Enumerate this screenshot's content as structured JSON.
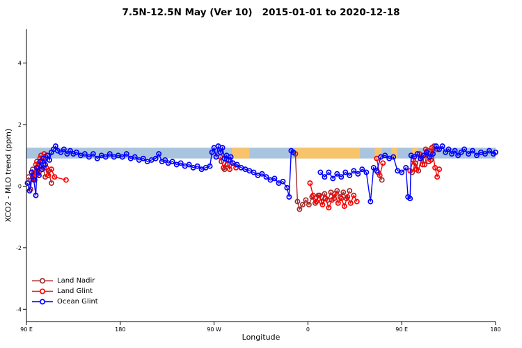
{
  "chart_data": {
    "type": "line",
    "title": "7.5N-12.5N May (Ver 10)   2015-01-01 to 2020-12-18",
    "x_axis": {
      "title": "Longitude",
      "min": 0,
      "max": 450,
      "ticks": [
        {
          "pos": 0,
          "label": "90 E"
        },
        {
          "pos": 90,
          "label": "180"
        },
        {
          "pos": 180,
          "label": "90 W"
        },
        {
          "pos": 270,
          "label": "0"
        },
        {
          "pos": 360,
          "label": "90 E"
        },
        {
          "pos": 450,
          "label": "180"
        }
      ],
      "note": "axis spans 450 degrees of longitude starting at 90E and wrapping eastward to 180"
    },
    "y_axis": {
      "title": "XCO2 - MLO trend (ppm)",
      "min": -4.4,
      "max": 5.1,
      "ticks": [
        {
          "value": -4,
          "label": "-4"
        },
        {
          "value": -2,
          "label": "-2"
        },
        {
          "value": 0,
          "label": "0"
        },
        {
          "value": 2,
          "label": "2"
        },
        {
          "value": 4,
          "label": "4"
        }
      ]
    },
    "bands": {
      "reference": {
        "x_min": 0,
        "x_max": 450,
        "y_min": 0.9,
        "y_max": 1.25,
        "color": "#a9c4de"
      },
      "highlight_color": "#f7c46c",
      "highlight_segments": [
        [
          197,
          214
        ],
        [
          258,
          320
        ],
        [
          334,
          341
        ],
        [
          350,
          356
        ],
        [
          370,
          376
        ]
      ]
    },
    "legend_position": "bottom-left",
    "series": [
      {
        "name": "Land Nadir",
        "color": "#a52a2a",
        "points": [
          [
            2,
            0.3
          ],
          [
            4,
            -0.1
          ],
          [
            6,
            0.55
          ],
          [
            8,
            0.2
          ],
          [
            10,
            0.8
          ],
          [
            12,
            0.45
          ],
          [
            14,
            1.0
          ],
          [
            16,
            0.6
          ],
          [
            18,
            0.3
          ],
          [
            21,
            0.5
          ],
          [
            24,
            0.1
          ],
          [
            187,
            0.8
          ],
          [
            190,
            0.55
          ],
          [
            193,
            0.7
          ],
          [
            258,
            1.05
          ],
          [
            260,
            -0.5
          ],
          [
            262,
            -0.75
          ],
          [
            265,
            -0.6
          ],
          [
            268,
            -0.45
          ],
          [
            271,
            -0.6
          ],
          [
            274,
            -0.35
          ],
          [
            277,
            -0.55
          ],
          [
            280,
            -0.3
          ],
          [
            283,
            -0.5
          ],
          [
            286,
            -0.25
          ],
          [
            289,
            -0.45
          ],
          [
            292,
            -0.2
          ],
          [
            295,
            -0.4
          ],
          [
            298,
            -0.15
          ],
          [
            301,
            -0.35
          ],
          [
            304,
            -0.2
          ],
          [
            307,
            -0.4
          ],
          [
            310,
            -0.15
          ],
          [
            337,
            0.45
          ],
          [
            341,
            0.2
          ],
          [
            370,
            0.45
          ],
          [
            373,
            0.75
          ],
          [
            376,
            0.5
          ],
          [
            379,
            0.95
          ],
          [
            382,
            0.7
          ],
          [
            385,
            1.15
          ],
          [
            388,
            0.85
          ],
          [
            391,
            1.3
          ],
          [
            394,
            1.2
          ]
        ]
      },
      {
        "name": "Land Glint",
        "color": "#ff0000",
        "points": [
          [
            5,
            0.45
          ],
          [
            7,
            0.25
          ],
          [
            9,
            0.7
          ],
          [
            11,
            0.4
          ],
          [
            13,
            0.9
          ],
          [
            15,
            0.55
          ],
          [
            17,
            1.05
          ],
          [
            19,
            0.6
          ],
          [
            21,
            0.35
          ],
          [
            24,
            0.55
          ],
          [
            27,
            0.3
          ],
          [
            38,
            0.2
          ],
          [
            186,
            0.95
          ],
          [
            189,
            0.6
          ],
          [
            192,
            0.85
          ],
          [
            195,
            0.55
          ],
          [
            198,
            0.75
          ],
          [
            201,
            0.6
          ],
          [
            272,
            0.1
          ],
          [
            275,
            -0.3
          ],
          [
            278,
            -0.5
          ],
          [
            281,
            -0.3
          ],
          [
            284,
            -0.6
          ],
          [
            287,
            -0.4
          ],
          [
            290,
            -0.7
          ],
          [
            293,
            -0.45
          ],
          [
            296,
            -0.25
          ],
          [
            299,
            -0.55
          ],
          [
            302,
            -0.4
          ],
          [
            305,
            -0.65
          ],
          [
            308,
            -0.35
          ],
          [
            311,
            -0.55
          ],
          [
            314,
            -0.3
          ],
          [
            317,
            -0.5
          ],
          [
            336,
            0.9
          ],
          [
            339,
            0.35
          ],
          [
            342,
            0.75
          ],
          [
            368,
            0.5
          ],
          [
            371,
            0.85
          ],
          [
            374,
            0.55
          ],
          [
            377,
            1.05
          ],
          [
            380,
            0.7
          ],
          [
            383,
            1.2
          ],
          [
            386,
            0.8
          ],
          [
            389,
            1.25
          ],
          [
            392,
            0.6
          ],
          [
            394,
            0.3
          ],
          [
            396,
            0.55
          ]
        ]
      },
      {
        "name": "Ocean Glint",
        "color": "#0000ff",
        "points": [
          [
            1,
            0.1
          ],
          [
            3,
            -0.15
          ],
          [
            5,
            0.45
          ],
          [
            7,
            0.2
          ],
          [
            9,
            -0.3
          ],
          [
            10,
            0.6
          ],
          [
            12,
            0.35
          ],
          [
            13,
            0.8
          ],
          [
            15,
            0.55
          ],
          [
            16,
            0.9
          ],
          [
            18,
            0.7
          ],
          [
            20,
            1.0
          ],
          [
            22,
            0.85
          ],
          [
            24,
            1.1
          ],
          [
            26,
            1.2
          ],
          [
            28,
            1.3
          ],
          [
            30,
            1.15
          ],
          [
            33,
            1.1
          ],
          [
            36,
            1.2
          ],
          [
            39,
            1.05
          ],
          [
            42,
            1.15
          ],
          [
            45,
            1.05
          ],
          [
            48,
            1.1
          ],
          [
            52,
            1.0
          ],
          [
            56,
            1.05
          ],
          [
            60,
            0.95
          ],
          [
            64,
            1.05
          ],
          [
            68,
            0.9
          ],
          [
            72,
            1.0
          ],
          [
            76,
            0.95
          ],
          [
            80,
            1.05
          ],
          [
            84,
            0.95
          ],
          [
            88,
            1.0
          ],
          [
            92,
            0.95
          ],
          [
            96,
            1.05
          ],
          [
            100,
            0.9
          ],
          [
            104,
            0.95
          ],
          [
            108,
            0.85
          ],
          [
            112,
            0.9
          ],
          [
            116,
            0.8
          ],
          [
            120,
            0.85
          ],
          [
            124,
            0.9
          ],
          [
            127,
            1.05
          ],
          [
            130,
            0.8
          ],
          [
            133,
            0.85
          ],
          [
            136,
            0.75
          ],
          [
            140,
            0.8
          ],
          [
            144,
            0.7
          ],
          [
            148,
            0.75
          ],
          [
            152,
            0.65
          ],
          [
            156,
            0.7
          ],
          [
            160,
            0.6
          ],
          [
            164,
            0.65
          ],
          [
            168,
            0.55
          ],
          [
            172,
            0.6
          ],
          [
            176,
            0.65
          ],
          [
            178,
            1.1
          ],
          [
            180,
            1.25
          ],
          [
            182,
            0.95
          ],
          [
            184,
            1.3
          ],
          [
            186,
            1.1
          ],
          [
            188,
            1.25
          ],
          [
            190,
            0.9
          ],
          [
            192,
            1.0
          ],
          [
            194,
            0.85
          ],
          [
            196,
            0.95
          ],
          [
            198,
            0.75
          ],
          [
            202,
            0.7
          ],
          [
            206,
            0.6
          ],
          [
            210,
            0.55
          ],
          [
            214,
            0.5
          ],
          [
            218,
            0.45
          ],
          [
            222,
            0.35
          ],
          [
            226,
            0.4
          ],
          [
            230,
            0.3
          ],
          [
            234,
            0.2
          ],
          [
            238,
            0.25
          ],
          [
            242,
            0.1
          ],
          [
            246,
            0.15
          ],
          [
            250,
            -0.05
          ],
          [
            252,
            -0.35
          ],
          [
            254,
            1.15
          ],
          [
            256,
            1.1
          ],
          [
            282,
            0.45
          ],
          [
            286,
            0.3
          ],
          [
            290,
            0.45
          ],
          [
            294,
            0.25
          ],
          [
            298,
            0.4
          ],
          [
            302,
            0.3
          ],
          [
            306,
            0.45
          ],
          [
            310,
            0.35
          ],
          [
            314,
            0.5
          ],
          [
            318,
            0.4
          ],
          [
            322,
            0.55
          ],
          [
            326,
            0.45
          ],
          [
            330,
            -0.5
          ],
          [
            333,
            0.6
          ],
          [
            336,
            0.5
          ],
          [
            340,
            0.95
          ],
          [
            344,
            1.0
          ],
          [
            348,
            0.9
          ],
          [
            352,
            0.95
          ],
          [
            356,
            0.5
          ],
          [
            360,
            0.45
          ],
          [
            364,
            0.6
          ],
          [
            366,
            -0.35
          ],
          [
            368,
            -0.4
          ],
          [
            369,
            1.0
          ],
          [
            372,
            0.95
          ],
          [
            375,
            1.05
          ],
          [
            378,
            0.9
          ],
          [
            381,
            1.0
          ],
          [
            384,
            1.1
          ],
          [
            387,
            0.95
          ],
          [
            390,
            1.05
          ],
          [
            393,
            1.3
          ],
          [
            396,
            1.2
          ],
          [
            399,
            1.3
          ],
          [
            402,
            1.1
          ],
          [
            405,
            1.2
          ],
          [
            408,
            1.05
          ],
          [
            411,
            1.15
          ],
          [
            414,
            1.0
          ],
          [
            417,
            1.1
          ],
          [
            420,
            1.2
          ],
          [
            424,
            1.05
          ],
          [
            428,
            1.15
          ],
          [
            432,
            1.0
          ],
          [
            436,
            1.1
          ],
          [
            440,
            1.05
          ],
          [
            444,
            1.15
          ],
          [
            448,
            1.05
          ],
          [
            450,
            1.1
          ]
        ]
      }
    ]
  }
}
